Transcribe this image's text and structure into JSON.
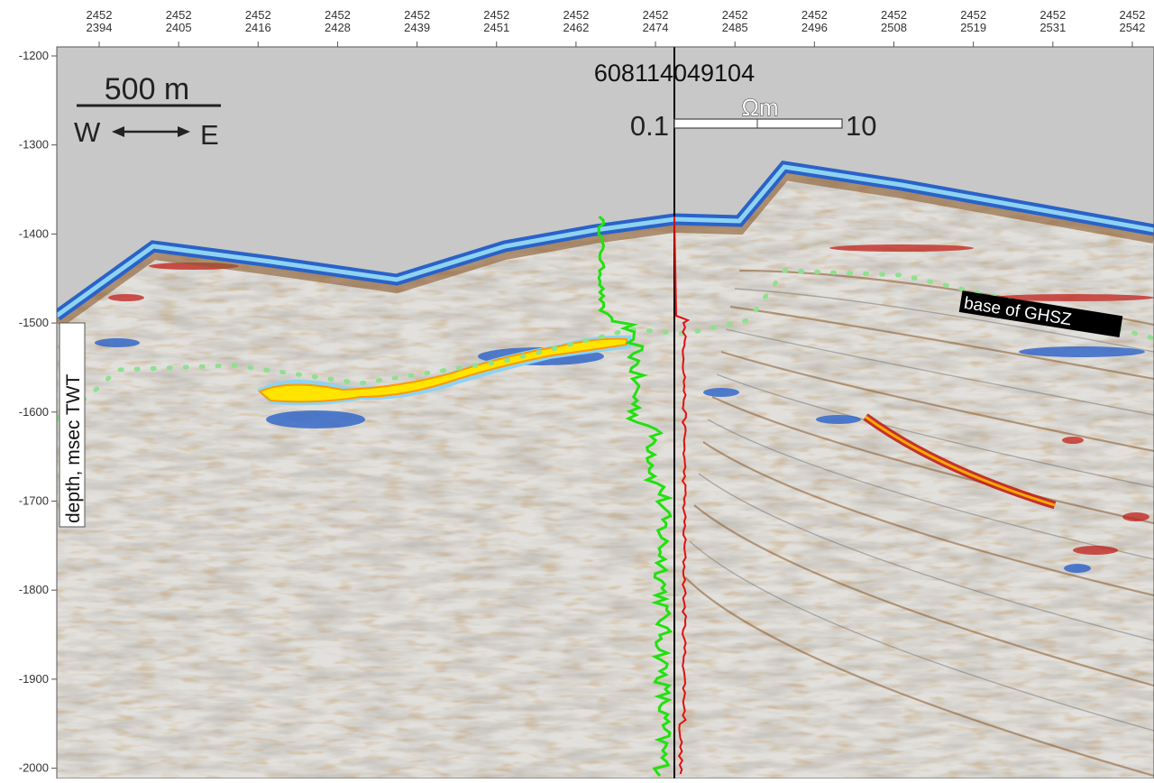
{
  "figure": {
    "x_ticks": [
      {
        "top": "2452",
        "bottom": "2394"
      },
      {
        "top": "2452",
        "bottom": "2405"
      },
      {
        "top": "2452",
        "bottom": "2416"
      },
      {
        "top": "2452",
        "bottom": "2428"
      },
      {
        "top": "2452",
        "bottom": "2439"
      },
      {
        "top": "2452",
        "bottom": "2451"
      },
      {
        "top": "2452",
        "bottom": "2462"
      },
      {
        "top": "2452",
        "bottom": "2474"
      },
      {
        "top": "2452",
        "bottom": "2485"
      },
      {
        "top": "2452",
        "bottom": "2496"
      },
      {
        "top": "2452",
        "bottom": "2508"
      },
      {
        "top": "2452",
        "bottom": "2519"
      },
      {
        "top": "2452",
        "bottom": "2531"
      },
      {
        "top": "2452",
        "bottom": "2542"
      }
    ],
    "y_ticks": [
      "-1200",
      "-1300",
      "-1400",
      "-1500",
      "-1600",
      "-1700",
      "-1800",
      "-1900",
      "-2000"
    ],
    "y_axis_label": "depth, msec TWT",
    "scale_bar_label": "500 m",
    "direction_west": "W",
    "direction_east": "E",
    "well_id": "608114049104",
    "resistivity_unit": "Ωm",
    "resistivity_min": "0.1",
    "resistivity_max": "10",
    "bsr_label": "base of GHSZ",
    "colors": {
      "water": "#c8c8c8",
      "seafloor_blue": "#2a62c8",
      "seafloor_light": "#8ed3f2",
      "brown": "#8a5a2b",
      "red": "#c0201a",
      "amplitude_yellow": "#ffe400",
      "log_green": "#22e010",
      "log_red": "#e01010",
      "bsr_dots": "#8fe08f"
    }
  }
}
